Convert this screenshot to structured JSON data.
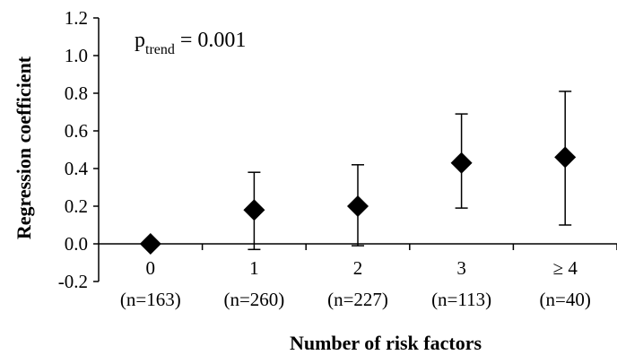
{
  "chart_data": {
    "type": "scatter",
    "xlabel": "Number of risk factors",
    "ylabel": "Regression coefficient",
    "ylim": [
      -0.2,
      1.2
    ],
    "yticks": [
      "-0.2",
      "0.0",
      "0.2",
      "0.4",
      "0.6",
      "0.8",
      "1.0",
      "1.2"
    ],
    "categories": [
      "0",
      "1",
      "2",
      "3",
      "≥ 4"
    ],
    "n_labels": [
      "(n=163)",
      "(n=260)",
      "(n=227)",
      "(n=113)",
      "(n=40)"
    ],
    "values": [
      0.0,
      0.18,
      0.2,
      0.43,
      0.46
    ],
    "ci_lower": [
      0.0,
      -0.03,
      -0.01,
      0.19,
      0.1
    ],
    "ci_upper": [
      0.0,
      0.38,
      0.42,
      0.69,
      0.81
    ],
    "annotation": {
      "p_symbol": "p",
      "subscript": "trend",
      "text": " = 0.001"
    },
    "grid": false,
    "marker": "diamond",
    "color": "#000000"
  }
}
